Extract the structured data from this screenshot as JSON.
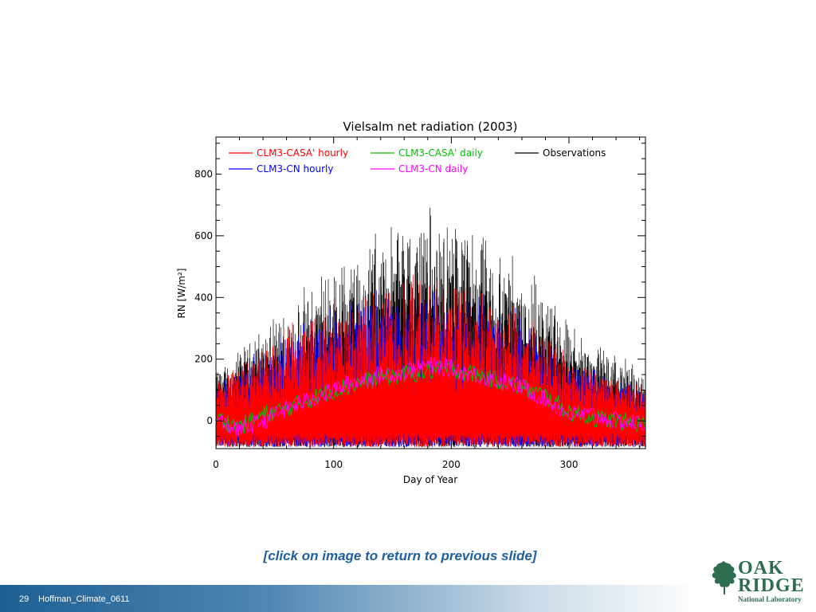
{
  "slide": {
    "caption": "[click on image to return to previous slide]",
    "slide_number": "29",
    "footer_text": "Hoffman_Climate_0611",
    "logo": {
      "line1": "OAK",
      "line2": "RIDGE",
      "line3": "National Laboratory"
    },
    "colors": {
      "footer_band": "#1e5f92",
      "caption": "#1f5f9f",
      "logo": "#2d6e4e"
    }
  },
  "chart_data": {
    "type": "line",
    "title": "Vielsalm net radiation (2003)",
    "xlabel": "Day of Year",
    "ylabel": "RN [W/m²]",
    "xlim": [
      0,
      365
    ],
    "ylim": [
      -90,
      920
    ],
    "x_ticks": [
      0,
      100,
      200,
      300
    ],
    "y_ticks": [
      0,
      200,
      400,
      600,
      800
    ],
    "grid": false,
    "legend_position": "top",
    "series": [
      {
        "name": "CLM3-CASA' hourly",
        "color": "#ff0000",
        "kind": "hourly",
        "peak_envelope": [
          [
            0,
            150
          ],
          [
            50,
            300
          ],
          [
            100,
            430
          ],
          [
            150,
            470
          ],
          [
            180,
            480
          ],
          [
            220,
            460
          ],
          [
            260,
            380
          ],
          [
            300,
            220
          ],
          [
            365,
            120
          ]
        ]
      },
      {
        "name": "CLM3-CASA' daily",
        "color": "#00c000",
        "kind": "daily",
        "x": [
          0,
          20,
          40,
          60,
          80,
          100,
          120,
          140,
          160,
          180,
          200,
          220,
          240,
          260,
          280,
          300,
          320,
          340,
          365
        ],
        "y": [
          10,
          -20,
          20,
          40,
          70,
          100,
          120,
          140,
          150,
          160,
          170,
          150,
          130,
          110,
          80,
          30,
          10,
          0,
          -10
        ]
      },
      {
        "name": "Observations",
        "color": "#000000",
        "kind": "hourly",
        "peak_envelope": [
          [
            0,
            180
          ],
          [
            50,
            350
          ],
          [
            100,
            550
          ],
          [
            150,
            680
          ],
          [
            180,
            750
          ],
          [
            220,
            640
          ],
          [
            260,
            580
          ],
          [
            300,
            340
          ],
          [
            365,
            160
          ]
        ]
      },
      {
        "name": "CLM3-CN hourly",
        "color": "#0000ff",
        "kind": "hourly",
        "peak_envelope": [
          [
            0,
            140
          ],
          [
            50,
            280
          ],
          [
            100,
            420
          ],
          [
            150,
            460
          ],
          [
            180,
            470
          ],
          [
            220,
            450
          ],
          [
            260,
            370
          ],
          [
            300,
            210
          ],
          [
            365,
            110
          ]
        ]
      },
      {
        "name": "CLM3-CN daily",
        "color": "#ff00ff",
        "kind": "daily",
        "x": [
          0,
          20,
          40,
          60,
          80,
          100,
          120,
          140,
          160,
          180,
          200,
          220,
          240,
          260,
          280,
          300,
          320,
          340,
          365
        ],
        "y": [
          0,
          -30,
          0,
          40,
          70,
          100,
          130,
          150,
          160,
          180,
          170,
          150,
          130,
          110,
          70,
          20,
          20,
          0,
          -10
        ]
      }
    ]
  }
}
